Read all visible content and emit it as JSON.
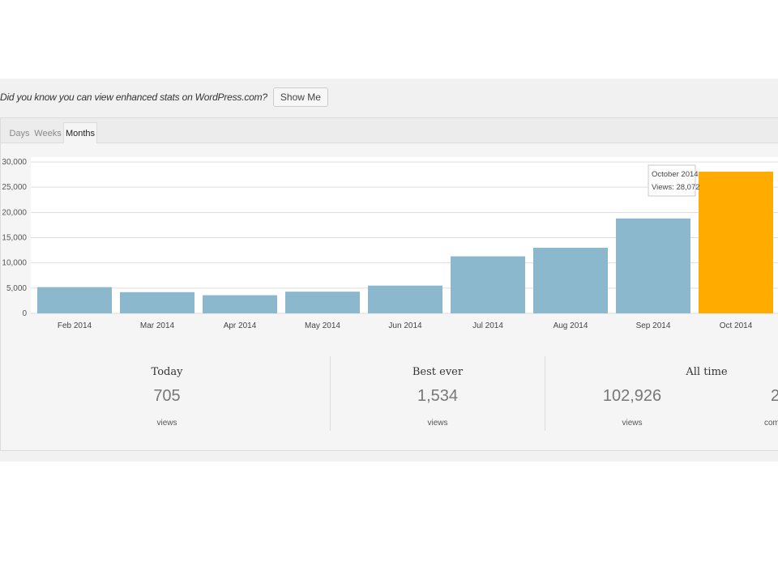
{
  "notice": {
    "text": "Did you know you can view enhanced stats on WordPress.com?",
    "button_label": "Show Me"
  },
  "tabs": [
    {
      "label": "Days",
      "active": false
    },
    {
      "label": "Weeks",
      "active": false
    },
    {
      "label": "Months",
      "active": true
    }
  ],
  "chart_data": {
    "type": "bar",
    "categories": [
      "Feb 2014",
      "Mar 2014",
      "Apr 2014",
      "May 2014",
      "Jun 2014",
      "Jul 2014",
      "Aug 2014",
      "Sep 2014",
      "Oct 2014"
    ],
    "values": [
      5200,
      4200,
      3600,
      4300,
      5500,
      11300,
      13000,
      18800,
      28072
    ],
    "ylim": [
      0,
      30000
    ],
    "y_ticks": [
      "0",
      "5,000",
      "10,000",
      "15,000",
      "20,000",
      "25,000",
      "30,000"
    ],
    "highlight_index": 8,
    "bar_color": "#8cb8ce",
    "highlight_color": "#ffab00",
    "grid": true,
    "tooltip": {
      "title": "October 2014",
      "text": "Views: 28,072"
    }
  },
  "stats": [
    {
      "label": "Today",
      "value": "705",
      "unit": "views"
    },
    {
      "label": "Best ever",
      "value": "1,534",
      "unit": "views"
    },
    {
      "label": "All time",
      "value": "102,926",
      "unit": "views"
    },
    {
      "label": "",
      "value": "2",
      "unit": "com"
    }
  ]
}
